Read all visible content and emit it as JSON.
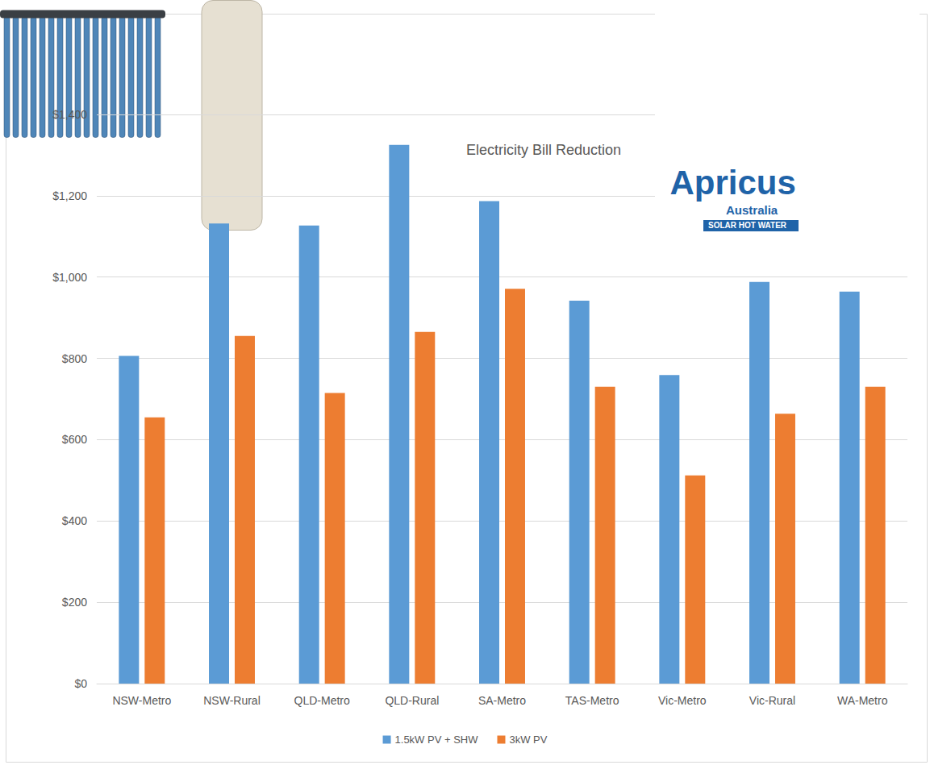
{
  "chart_data": {
    "type": "bar",
    "title": "Electricity Bill Reduction",
    "categories": [
      "NSW-Metro",
      "NSW-Rural",
      "QLD-Metro",
      "QLD-Rural",
      "SA-Metro",
      "TAS-Metro",
      "Vic-Metro",
      "Vic-Rural",
      "WA-Metro"
    ],
    "series": [
      {
        "name": "1.5kW PV + SHW",
        "color": "#5B9BD5",
        "values": [
          806,
          1132,
          1127,
          1325,
          1187,
          942,
          759,
          988,
          964
        ]
      },
      {
        "name": "3kW PV",
        "color": "#ED7D31",
        "values": [
          655,
          855,
          715,
          865,
          971,
          730,
          512,
          664,
          730
        ]
      }
    ],
    "ylim": [
      0,
      1400
    ],
    "yticks": [
      {
        "value": 0,
        "label": "$0"
      },
      {
        "value": 200,
        "label": "$200"
      },
      {
        "value": 400,
        "label": "$400"
      },
      {
        "value": 600,
        "label": "$600"
      },
      {
        "value": 800,
        "label": "$800"
      },
      {
        "value": 1000,
        "label": "$1,000"
      },
      {
        "value": 1200,
        "label": "$1,200"
      },
      {
        "value": 1400,
        "label": "$1,400"
      }
    ],
    "grid": true,
    "legend": "bottom",
    "annotations": [
      "Apricus",
      "Australia",
      "SOLAR HOT WATER"
    ]
  }
}
